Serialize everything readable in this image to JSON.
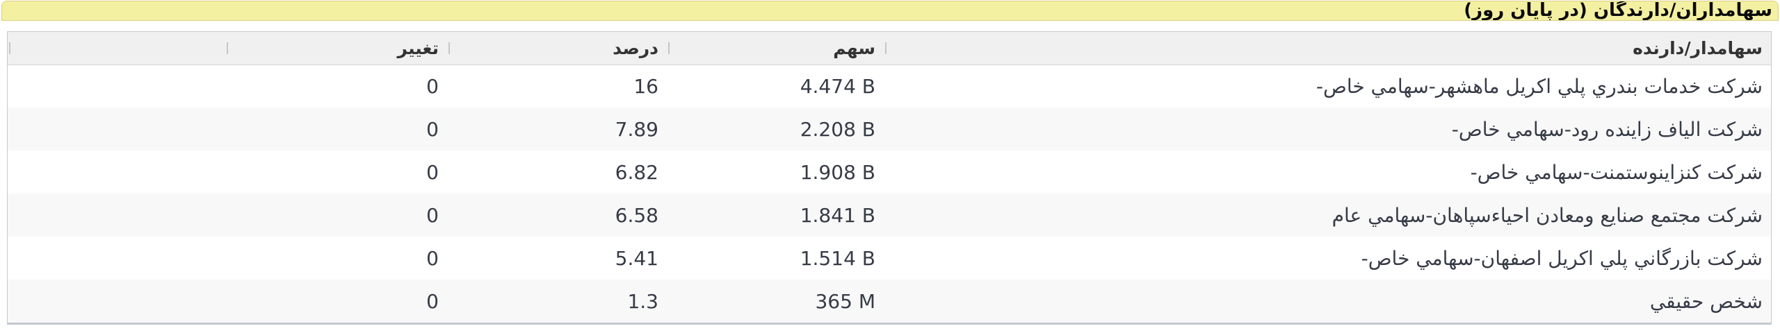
{
  "title": "سهامداران/دارندگان (در پایان روز)",
  "table": {
    "columns": [
      {
        "key": "name",
        "label": "سهامدار/دارنده"
      },
      {
        "key": "share",
        "label": "سهم"
      },
      {
        "key": "percent",
        "label": "درصد"
      },
      {
        "key": "change",
        "label": "تغییر"
      }
    ],
    "rows": [
      {
        "name": "شرکت خدمات بندري پلي اکریل ماهشهر-سهامي خاص-",
        "share": "4.474 B",
        "percent": "16",
        "change": "0"
      },
      {
        "name": "شرکت الیاف زاینده رود-سهامي خاص-",
        "share": "2.208 B",
        "percent": "7.89",
        "change": "0"
      },
      {
        "name": "شرکت کنزاینوستمنت-سهامي خاص-",
        "share": "1.908 B",
        "percent": "6.82",
        "change": "0"
      },
      {
        "name": "شرکت مجتمع صنایع ومعادن احیاءسپاهان-سهامي عام",
        "share": "1.841 B",
        "percent": "6.58",
        "change": "0"
      },
      {
        "name": "شرکت بازرگاني پلي اکریل اصفهان-سهامي خاص-",
        "share": "1.514 B",
        "percent": "5.41",
        "change": "0"
      },
      {
        "name": "شخص حقیقي",
        "share": "365 M",
        "percent": "1.3",
        "change": "0"
      }
    ]
  },
  "colors": {
    "title_bg": "#f4f0a2",
    "title_border": "#dbcf82",
    "header_bg": "#f0f0f0",
    "grid_border": "#c9c9c9",
    "grid_bottom_border": "#c3c7cd",
    "zebra_row": "#f8f8f9",
    "text": "#363b46"
  }
}
